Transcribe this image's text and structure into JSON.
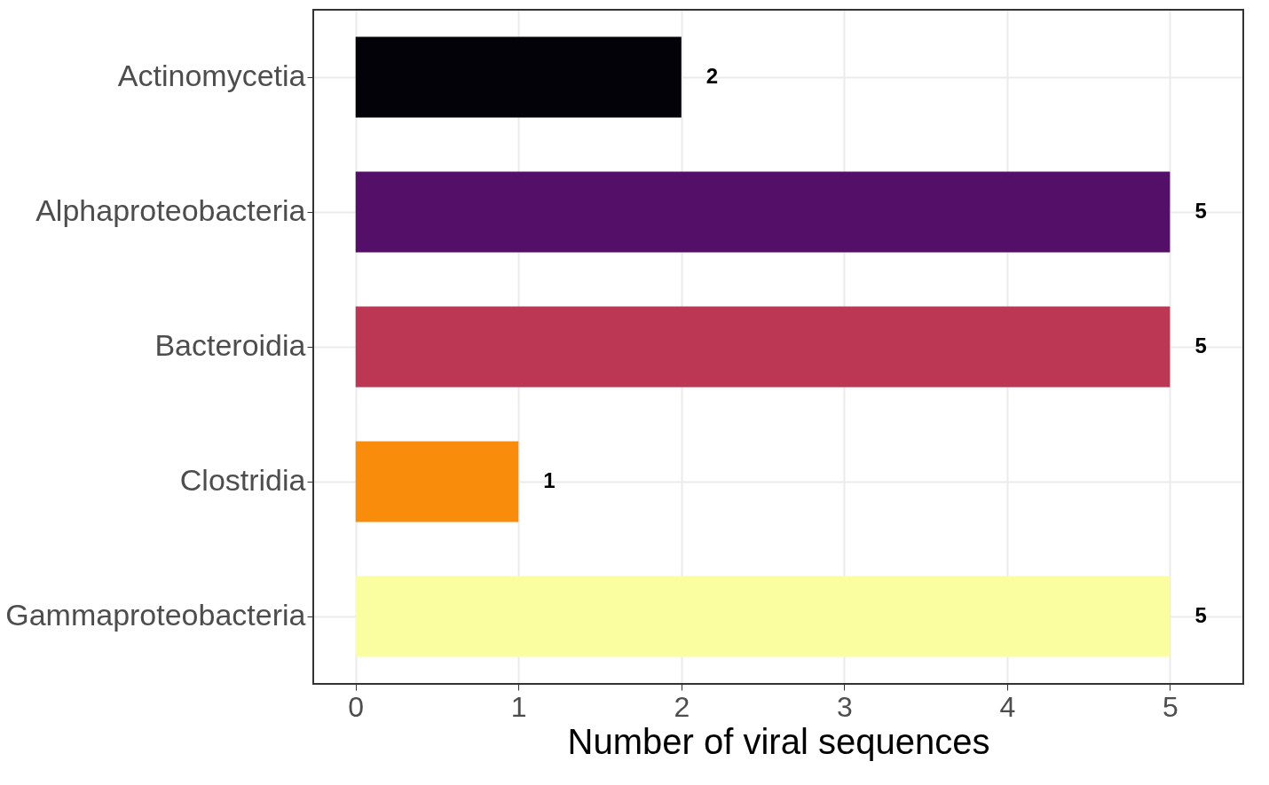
{
  "chart_data": {
    "type": "bar",
    "orientation": "horizontal",
    "xlabel": "Number of viral sequences",
    "categories": [
      "Actinomycetia",
      "Alphaproteobacteria",
      "Bacteroidia",
      "Clostridia",
      "Gammaproteobacteria"
    ],
    "values": [
      2,
      5,
      5,
      1,
      5
    ],
    "colors": [
      "#030208",
      "#541068",
      "#bb3754",
      "#f98c0a",
      "#fafea0"
    ],
    "xlim": [
      -0.26,
      5.45
    ],
    "xticks": [
      0,
      1,
      2,
      3,
      4,
      5
    ],
    "grid": true,
    "data_labels": true
  }
}
